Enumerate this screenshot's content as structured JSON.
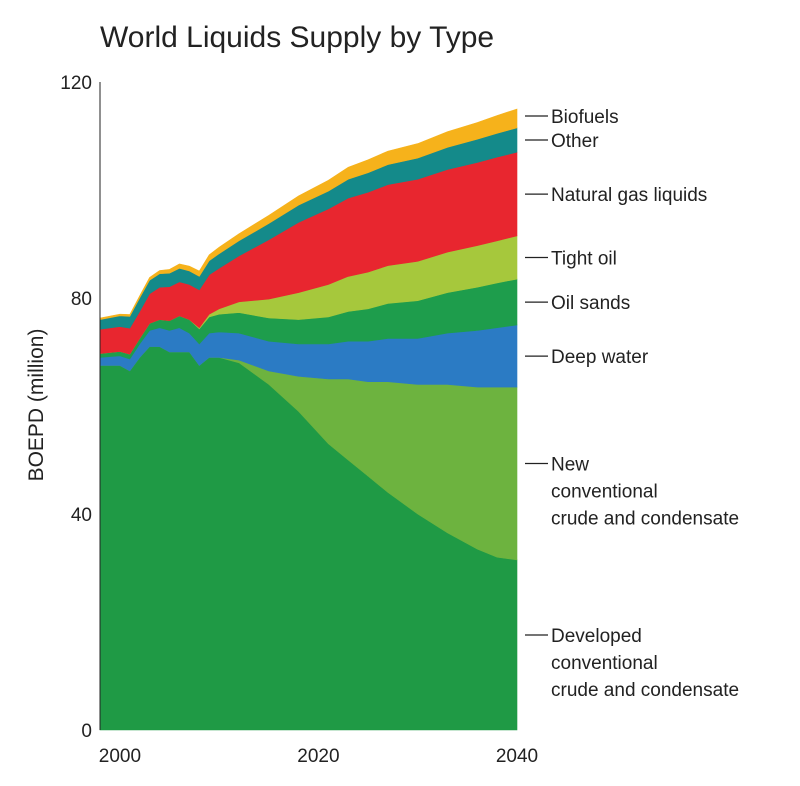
{
  "chart_data": {
    "type": "area",
    "stacked": true,
    "title": "World Liquids Supply by Type",
    "xlabel": "",
    "ylabel": "BOEPD (million)",
    "xlim": [
      1998,
      2040
    ],
    "ylim": [
      0,
      120
    ],
    "x_ticks": [
      "2000",
      "2020",
      "2040"
    ],
    "y_ticks": [
      "0",
      "40",
      "80",
      "120"
    ],
    "grid": false,
    "legend_position": "right",
    "x": [
      1998,
      2000,
      2001,
      2002,
      2003,
      2004,
      2005,
      2006,
      2007,
      2008,
      2009,
      2010,
      2012,
      2015,
      2018,
      2021,
      2023,
      2025,
      2027,
      2030,
      2033,
      2036,
      2038,
      2040
    ],
    "series": [
      {
        "name": "Developed conventional crude and condensate",
        "legend": [
          "Developed",
          "conventional",
          "crude and condensate"
        ],
        "color": "#1f9a45",
        "values": [
          67.5,
          67.5,
          66.5,
          69,
          71,
          71,
          70,
          70,
          70,
          67.5,
          69,
          69,
          68,
          64,
          59,
          53,
          50,
          47,
          44,
          40,
          36.5,
          33.5,
          32,
          31.5
        ]
      },
      {
        "name": "New conventional crude and condensate",
        "legend": [
          "New",
          "conventional",
          "crude and condensate"
        ],
        "color": "#6db33f",
        "values": [
          0,
          0,
          0,
          0,
          0,
          0,
          0,
          0,
          0,
          0,
          0,
          0,
          0.5,
          2.5,
          6.5,
          12,
          15,
          17.5,
          20.5,
          24,
          27.5,
          30,
          31.5,
          32
        ]
      },
      {
        "name": "Deep water",
        "legend": [
          "Deep water"
        ],
        "color": "#2b7bc4",
        "values": [
          1.5,
          1.8,
          2.2,
          2.5,
          3,
          3.5,
          4,
          4.5,
          3.5,
          4,
          4.5,
          4.7,
          5,
          5.5,
          6,
          6.5,
          7,
          7.5,
          8,
          8.5,
          9.5,
          10.5,
          11,
          11.5
        ]
      },
      {
        "name": "Oil sands",
        "legend": [
          "Oil sands"
        ],
        "color": "#1e9d4c",
        "values": [
          0.7,
          0.8,
          0.9,
          1,
          1.3,
          1.5,
          1.8,
          2.2,
          2.5,
          2.8,
          3,
          3.3,
          3.8,
          4.3,
          4.5,
          5,
          5.5,
          6,
          6.5,
          7,
          7.5,
          8,
          8.3,
          8.5
        ]
      },
      {
        "name": "Tight oil",
        "legend": [
          "Tight oil"
        ],
        "color": "#a6c83c",
        "values": [
          0,
          0,
          0,
          0,
          0,
          0,
          0,
          0,
          0,
          0.2,
          0.5,
          1,
          2,
          3.5,
          5,
          6,
          6.5,
          6.8,
          7,
          7.3,
          7.5,
          7.7,
          7.8,
          8
        ]
      },
      {
        "name": "Natural gas liquids",
        "legend": [
          "Natural gas liquids"
        ],
        "color": "#e8262f",
        "values": [
          4.5,
          4.6,
          4.8,
          5,
          5.5,
          6,
          6.3,
          6.3,
          6.5,
          7,
          7.3,
          7.5,
          8.5,
          11,
          13,
          14,
          14.5,
          14.8,
          15,
          15.2,
          15.3,
          15.4,
          15.5,
          15.5
        ]
      },
      {
        "name": "Other",
        "legend": [
          "Other"
        ],
        "color": "#148a8a",
        "values": [
          1.8,
          2,
          2.2,
          2.5,
          2.5,
          2.5,
          2.5,
          2.5,
          2.5,
          2.5,
          2.6,
          2.7,
          2.8,
          3,
          3.2,
          3.3,
          3.5,
          3.6,
          3.7,
          3.9,
          4.1,
          4.3,
          4.4,
          4.5
        ]
      },
      {
        "name": "Biofuels",
        "legend": [
          "Biofuels"
        ],
        "color": "#f6b21b",
        "values": [
          0.3,
          0.3,
          0.35,
          0.4,
          0.5,
          0.6,
          0.7,
          0.8,
          0.9,
          1,
          1.1,
          1.2,
          1.3,
          1.5,
          1.7,
          2,
          2.2,
          2.4,
          2.5,
          2.7,
          2.9,
          3.1,
          3.3,
          3.5
        ]
      }
    ]
  }
}
